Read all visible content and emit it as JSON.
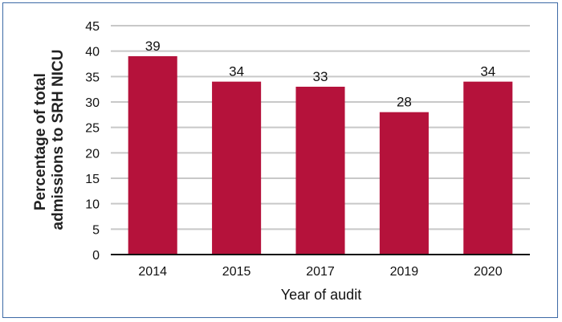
{
  "chart_data": {
    "type": "bar",
    "categories": [
      "2014",
      "2015",
      "2017",
      "2019",
      "2020"
    ],
    "values": [
      39,
      34,
      33,
      28,
      34
    ],
    "data_labels": [
      "39",
      "34",
      "33",
      "28",
      "34"
    ],
    "title": "",
    "xlabel": "Year of audit",
    "ylabel_lines": [
      "Percentage of total",
      "admissions to SRH NICU"
    ],
    "ylim": [
      0,
      45
    ],
    "yticks": [
      0,
      5,
      10,
      15,
      20,
      25,
      30,
      35,
      40,
      45
    ],
    "grid": true,
    "bar_color": "#b5123b",
    "grid_color": "#c8c8c8",
    "frame_color": "#3d6aa6"
  }
}
